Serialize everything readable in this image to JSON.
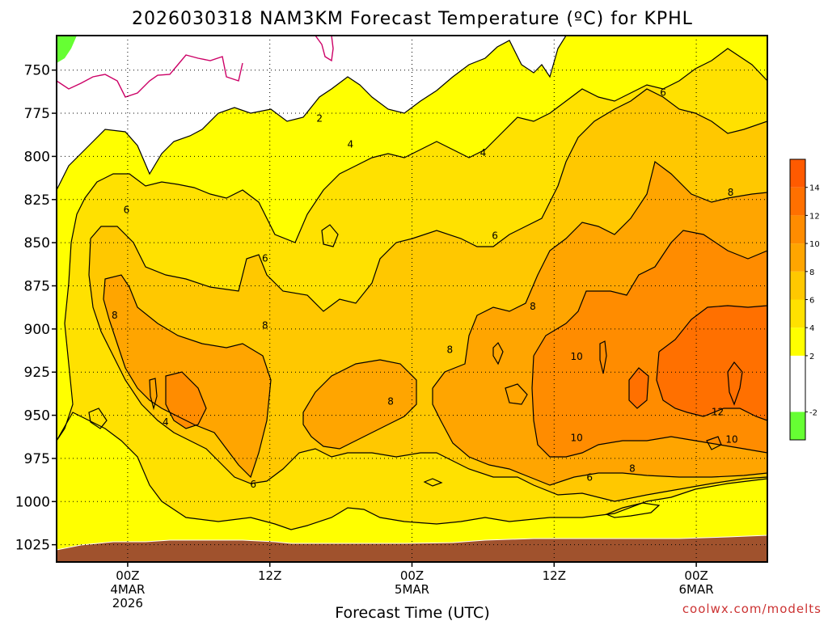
{
  "chart_data": {
    "type": "heatmap",
    "title": "2026030318 NAM3KM Forecast Temperature (ºC) for KPHL",
    "xlabel": "Forecast Time (UTC)",
    "ylabel": "",
    "y_ticks": [
      "750",
      "775",
      "800",
      "825",
      "850",
      "875",
      "900",
      "925",
      "950",
      "975",
      "1000",
      "1025"
    ],
    "y_range_hpa": [
      730,
      1035
    ],
    "x_range_hours": [
      0,
      60
    ],
    "x_ticks": [
      {
        "hour": 6,
        "lines": [
          "00Z",
          "4MAR",
          "2026"
        ]
      },
      {
        "hour": 18,
        "lines": [
          "12Z"
        ]
      },
      {
        "hour": 30,
        "lines": [
          "00Z",
          "5MAR"
        ]
      },
      {
        "hour": 42,
        "lines": [
          "12Z"
        ]
      },
      {
        "hour": 54,
        "lines": [
          "00Z",
          "6MAR"
        ]
      }
    ],
    "colorbar": {
      "levels": [
        -4,
        -2,
        0,
        2,
        4,
        6,
        8,
        10,
        12,
        14,
        16
      ],
      "tick_labels": [
        "-2",
        "2",
        "4",
        "6",
        "8",
        "10",
        "12",
        "14"
      ],
      "tick_values": [
        -2,
        2,
        4,
        6,
        8,
        10,
        12,
        14
      ],
      "colors": [
        "#66ff33",
        "#ffffff",
        "#ffffff",
        "#ffff00",
        "#ffe100",
        "#ffc800",
        "#ffa500",
        "#ff8c00",
        "#ff7000",
        "#ff5a00"
      ]
    },
    "contour_labels": [
      {
        "text": "2",
        "hour": 22.2,
        "hpa": 778
      },
      {
        "text": "4",
        "hour": 24.8,
        "hpa": 793
      },
      {
        "text": "4",
        "hour": 36.0,
        "hpa": 798
      },
      {
        "text": "6",
        "hour": 5.9,
        "hpa": 831
      },
      {
        "text": "6",
        "hour": 17.6,
        "hpa": 859
      },
      {
        "text": "6",
        "hour": 37.0,
        "hpa": 846
      },
      {
        "text": "6",
        "hour": 51.2,
        "hpa": 763
      },
      {
        "text": "8",
        "hour": 4.9,
        "hpa": 892
      },
      {
        "text": "8",
        "hour": 17.6,
        "hpa": 898
      },
      {
        "text": "8",
        "hour": 33.2,
        "hpa": 912
      },
      {
        "text": "8",
        "hour": 28.2,
        "hpa": 942
      },
      {
        "text": "8",
        "hour": 40.2,
        "hpa": 887
      },
      {
        "text": "8",
        "hour": 48.6,
        "hpa": 981
      },
      {
        "text": "8",
        "hour": 56.9,
        "hpa": 821
      },
      {
        "text": "10",
        "hour": 43.9,
        "hpa": 916
      },
      {
        "text": "10",
        "hour": 43.9,
        "hpa": 963
      },
      {
        "text": "10",
        "hour": 57.0,
        "hpa": 964
      },
      {
        "text": "12",
        "hour": 55.8,
        "hpa": 948
      },
      {
        "text": "4",
        "hour": 9.2,
        "hpa": 954
      },
      {
        "text": "6",
        "hour": 16.6,
        "hpa": 990
      },
      {
        "text": "6",
        "hour": 45.0,
        "hpa": 986
      }
    ],
    "terrain_color": "#a0522d",
    "legend": "right"
  },
  "credit": "coolwx.com/modelts"
}
